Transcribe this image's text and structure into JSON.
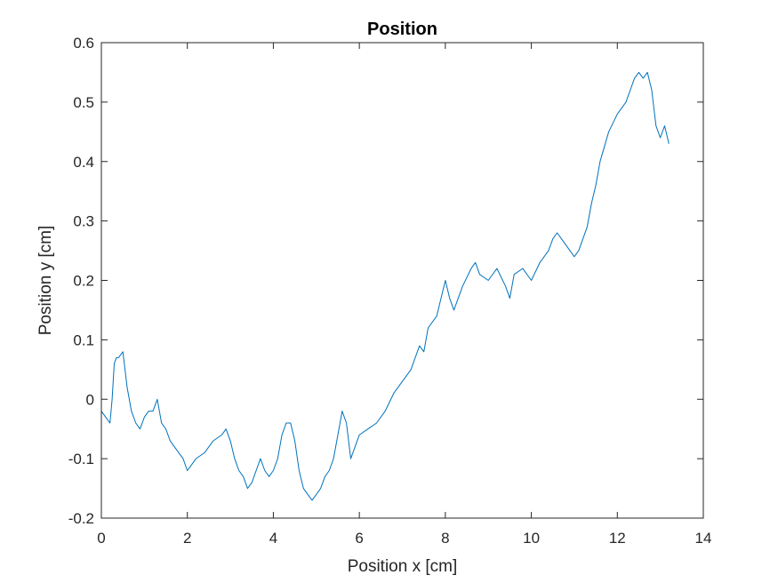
{
  "chart_data": {
    "type": "line",
    "title": "Position",
    "xlabel": "Position x [cm]",
    "ylabel": "Position y [cm]",
    "xlim": [
      0,
      14
    ],
    "ylim": [
      -0.2,
      0.6
    ],
    "xticks": [
      0,
      2,
      4,
      6,
      8,
      10,
      12,
      14
    ],
    "xtick_labels": [
      "0",
      "2",
      "4",
      "6",
      "8",
      "10",
      "12",
      "14"
    ],
    "yticks": [
      -0.2,
      -0.1,
      0,
      0.1,
      0.2,
      0.3,
      0.4,
      0.5,
      0.6
    ],
    "ytick_labels": [
      "-0.2",
      "-0.1",
      "0",
      "0.1",
      "0.2",
      "0.3",
      "0.4",
      "0.5",
      "0.6"
    ],
    "grid": false,
    "line_color": "#0072BD",
    "series": [
      {
        "x": [
          0.0,
          0.1,
          0.2,
          0.25,
          0.3,
          0.35,
          0.4,
          0.5,
          0.55,
          0.6,
          0.7,
          0.8,
          0.9,
          1.0,
          1.1,
          1.2,
          1.3,
          1.4,
          1.5,
          1.6,
          1.7,
          1.8,
          1.9,
          2.0,
          2.1,
          2.2,
          2.4,
          2.6,
          2.8,
          2.9,
          3.0,
          3.1,
          3.2,
          3.3,
          3.4,
          3.5,
          3.6,
          3.7,
          3.8,
          3.9,
          4.0,
          4.1,
          4.2,
          4.3,
          4.4,
          4.5,
          4.6,
          4.7,
          4.8,
          4.9,
          5.0,
          5.1,
          5.2,
          5.3,
          5.4,
          5.5,
          5.6,
          5.7,
          5.8,
          5.9,
          6.0,
          6.2,
          6.4,
          6.6,
          6.8,
          7.0,
          7.2,
          7.4,
          7.5,
          7.6,
          7.8,
          7.9,
          8.0,
          8.1,
          8.2,
          8.4,
          8.6,
          8.7,
          8.8,
          9.0,
          9.2,
          9.4,
          9.5,
          9.6,
          9.8,
          10.0,
          10.2,
          10.4,
          10.5,
          10.6,
          10.8,
          11.0,
          11.1,
          11.2,
          11.3,
          11.4,
          11.5,
          11.6,
          11.8,
          12.0,
          12.2,
          12.3,
          12.4,
          12.5,
          12.6,
          12.7,
          12.8,
          12.9,
          13.0,
          13.1,
          13.2
        ],
        "y": [
          -0.02,
          -0.03,
          -0.04,
          0.0,
          0.06,
          0.07,
          0.07,
          0.08,
          0.05,
          0.02,
          -0.02,
          -0.04,
          -0.05,
          -0.03,
          -0.02,
          -0.02,
          0.0,
          -0.04,
          -0.05,
          -0.07,
          -0.08,
          -0.09,
          -0.1,
          -0.12,
          -0.11,
          -0.1,
          -0.09,
          -0.07,
          -0.06,
          -0.05,
          -0.07,
          -0.1,
          -0.12,
          -0.13,
          -0.15,
          -0.14,
          -0.12,
          -0.1,
          -0.12,
          -0.13,
          -0.12,
          -0.1,
          -0.06,
          -0.04,
          -0.04,
          -0.07,
          -0.12,
          -0.15,
          -0.16,
          -0.17,
          -0.16,
          -0.15,
          -0.13,
          -0.12,
          -0.1,
          -0.06,
          -0.02,
          -0.04,
          -0.1,
          -0.08,
          -0.06,
          -0.05,
          -0.04,
          -0.02,
          0.01,
          0.03,
          0.05,
          0.09,
          0.08,
          0.12,
          0.14,
          0.17,
          0.2,
          0.17,
          0.15,
          0.19,
          0.22,
          0.23,
          0.21,
          0.2,
          0.22,
          0.19,
          0.17,
          0.21,
          0.22,
          0.2,
          0.23,
          0.25,
          0.27,
          0.28,
          0.26,
          0.24,
          0.25,
          0.27,
          0.29,
          0.33,
          0.36,
          0.4,
          0.45,
          0.48,
          0.5,
          0.52,
          0.54,
          0.55,
          0.54,
          0.55,
          0.52,
          0.46,
          0.44,
          0.46,
          0.43
        ]
      }
    ]
  }
}
